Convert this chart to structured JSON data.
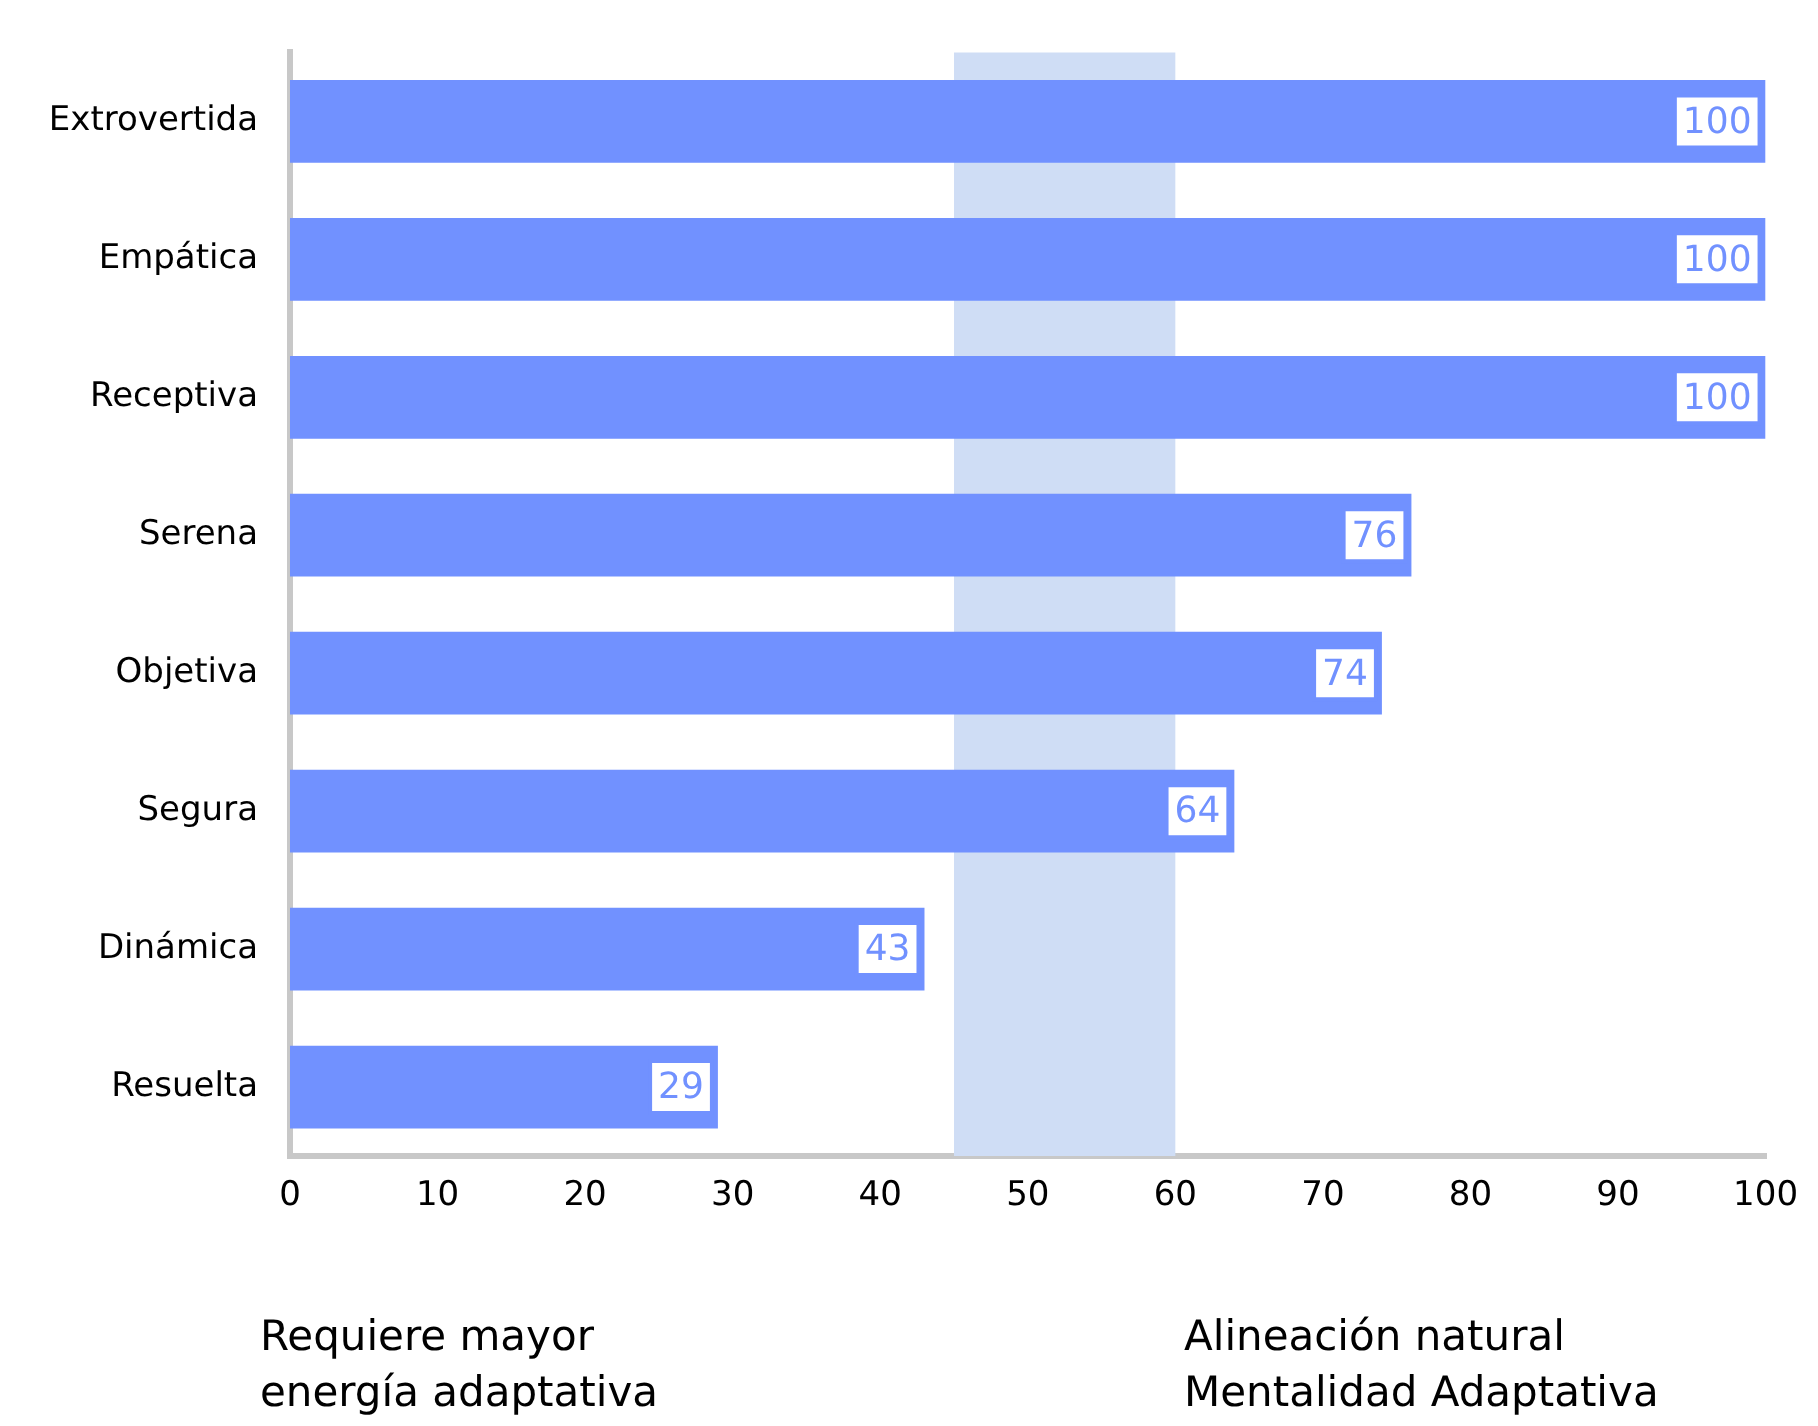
{
  "chart_data": {
    "type": "bar",
    "orientation": "horizontal",
    "categories": [
      "Extrovertida",
      "Empática",
      "Receptiva",
      "Serena",
      "Objetiva",
      "Segura",
      "Dinámica",
      "Resuelta"
    ],
    "values": [
      100,
      100,
      100,
      76,
      74,
      64,
      43,
      29
    ],
    "color": "#7191ff",
    "xlim": [
      0,
      100
    ],
    "xticks": [
      0,
      10,
      20,
      30,
      40,
      50,
      60,
      70,
      80,
      90,
      100
    ],
    "grid": false,
    "legend": false,
    "data_labels": true,
    "bands": [
      {
        "axis": "x",
        "from": 45,
        "to": 60,
        "color": "#cfddf5"
      }
    ],
    "annotations": [
      "Requiere mayor\nenergía adaptativa",
      "Alineación natural\nMentalidad Adaptativa"
    ]
  }
}
